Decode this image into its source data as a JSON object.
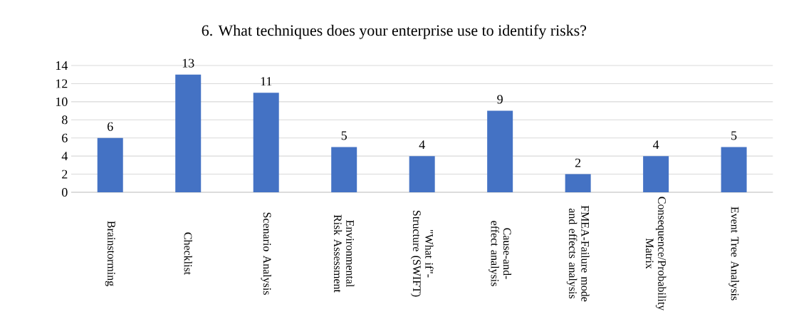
{
  "chart_data": {
    "type": "bar",
    "title": "6. What techniques does your enterprise use to identify risks?",
    "categories": [
      "Brainstorming",
      "Checklist",
      "Scenario Analysis",
      "Environmental Risk Assessment",
      "\"What if\"-Structure (SWIFT)",
      "Cause-and-effect analysis",
      "FMEA-Failure mode and effects analysis",
      "Consequence/Probability Matrix",
      "Event Tree Analysis"
    ],
    "values": [
      6,
      13,
      11,
      5,
      4,
      9,
      2,
      4,
      5
    ],
    "color": "#4472c4",
    "ylim": [
      0,
      14
    ],
    "yticks": [
      0,
      2,
      4,
      6,
      8,
      10,
      12,
      14
    ],
    "grid": "y",
    "data_labels": true
  }
}
